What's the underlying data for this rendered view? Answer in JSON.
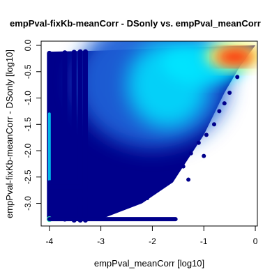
{
  "chart_data": {
    "type": "scatter",
    "title": "empPval-fixKb-meanCorr - DSonly vs. empPval_meanCorr",
    "xlabel": "empPval_meanCorr [log10]",
    "ylabel": "empPval-fixKb-meanCorr - DSonly [log10]",
    "xlim": [
      -4.16,
      0.04
    ],
    "ylim": [
      -3.43,
      0.08
    ],
    "x_ticks": [
      -4,
      -3,
      -2,
      -1,
      0
    ],
    "x_tick_labels": [
      "-4",
      "-3",
      "-2",
      "-1",
      "0"
    ],
    "y_ticks": [
      0.0,
      -0.5,
      -1.0,
      -1.5,
      -2.0,
      -2.5,
      -3.0
    ],
    "y_tick_labels": [
      "0.0",
      "-0.5",
      "-1.0",
      "-1.5",
      "-2.0",
      "-2.5",
      "-3.0"
    ],
    "grid": false,
    "legend": "none",
    "color_scale": "density (blue-cyan-yellow-red)",
    "colors": {
      "low_density": "#00008b",
      "mid_low": "#1a5fd6",
      "mid": "#00e5ff",
      "mid_high": "#f5f56a",
      "high_density": "#ff2200"
    },
    "density_region": {
      "upper_boundary": [
        [
          -4.0,
          -0.12
        ],
        [
          -3.0,
          -0.1
        ],
        [
          -2.0,
          -0.06
        ],
        [
          -1.0,
          -0.03
        ],
        [
          0.0,
          0.0
        ]
      ],
      "lower_boundary": [
        [
          -4.0,
          -3.3
        ],
        [
          -3.0,
          -3.3
        ],
        [
          -2.2,
          -3.0
        ],
        [
          -1.6,
          -2.6
        ],
        [
          -1.0,
          -1.7
        ],
        [
          -0.6,
          -0.9
        ],
        [
          -0.3,
          -0.4
        ],
        [
          0.0,
          0.0
        ]
      ],
      "peak": [
        -0.4,
        -0.2
      ]
    },
    "discrete_columns": [
      {
        "x": -4.0,
        "y_top": -0.15,
        "y_bottom": -3.3
      },
      {
        "x": -3.7,
        "y_top": -0.14,
        "y_bottom": -3.3
      },
      {
        "x": -3.52,
        "y_top": -0.13,
        "y_bottom": -3.32
      },
      {
        "x": -3.4,
        "y_top": -0.12,
        "y_bottom": -3.32
      },
      {
        "x": -3.3,
        "y_top": -0.12,
        "y_bottom": -3.32
      }
    ],
    "discrete_rows": [
      -3.3,
      -3.0,
      -2.83,
      -2.7,
      -2.6
    ]
  }
}
